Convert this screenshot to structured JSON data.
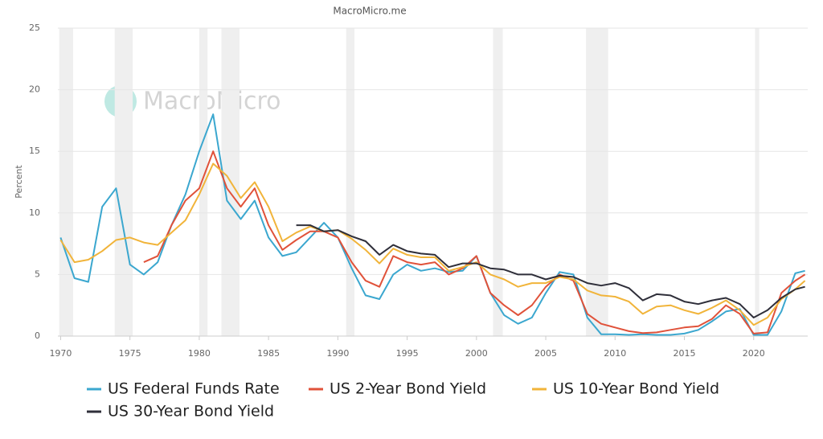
{
  "source": "MacroMicro.me",
  "watermark": "MacroMicro",
  "chart_data": {
    "type": "line",
    "ylabel": "Percent",
    "x": [
      1970,
      1971,
      1972,
      1973,
      1974,
      1975,
      1976,
      1977,
      1978,
      1979,
      1980,
      1981,
      1982,
      1983,
      1984,
      1985,
      1986,
      1987,
      1988,
      1989,
      1990,
      1991,
      1992,
      1993,
      1994,
      1995,
      1996,
      1997,
      1998,
      1999,
      2000,
      2001,
      2002,
      2003,
      2004,
      2005,
      2006,
      2007,
      2008,
      2009,
      2010,
      2011,
      2012,
      2013,
      2014,
      2015,
      2016,
      2017,
      2018,
      2019,
      2020,
      2021,
      2022,
      2023,
      2023.7
    ],
    "series": [
      {
        "name": "US Federal Funds Rate",
        "color": "#3ba7cf",
        "values": [
          8.0,
          4.7,
          4.4,
          10.5,
          12.0,
          5.8,
          5.0,
          6.0,
          9.0,
          11.5,
          15.0,
          18.0,
          11.0,
          9.5,
          11.0,
          8.0,
          6.5,
          6.8,
          8.0,
          9.2,
          8.0,
          5.5,
          3.3,
          3.0,
          5.0,
          5.8,
          5.3,
          5.5,
          5.2,
          5.3,
          6.5,
          3.5,
          1.7,
          1.0,
          1.5,
          3.5,
          5.2,
          5.0,
          1.5,
          0.15,
          0.15,
          0.1,
          0.15,
          0.1,
          0.1,
          0.2,
          0.5,
          1.2,
          2.0,
          2.2,
          0.1,
          0.1,
          2.0,
          5.1,
          5.3
        ]
      },
      {
        "name": "US 2-Year Bond Yield",
        "color": "#e0523a",
        "values": [
          null,
          null,
          null,
          null,
          null,
          null,
          6.0,
          6.5,
          9.0,
          11.0,
          12.0,
          15.0,
          12.0,
          10.5,
          12.0,
          9.0,
          7.0,
          7.8,
          8.5,
          8.5,
          8.0,
          6.0,
          4.5,
          4.0,
          6.5,
          6.0,
          5.8,
          6.0,
          5.0,
          5.5,
          6.5,
          3.5,
          2.5,
          1.7,
          2.5,
          4.0,
          5.0,
          4.5,
          1.8,
          1.0,
          0.7,
          0.4,
          0.25,
          0.3,
          0.5,
          0.7,
          0.8,
          1.4,
          2.5,
          1.8,
          0.2,
          0.3,
          3.5,
          4.5,
          5.0
        ]
      },
      {
        "name": "US 10-Year Bond Yield",
        "color": "#f1b43a",
        "values": [
          7.8,
          6.0,
          6.2,
          6.9,
          7.8,
          8.0,
          7.6,
          7.4,
          8.4,
          9.4,
          11.5,
          14.0,
          13.0,
          11.2,
          12.5,
          10.5,
          7.7,
          8.4,
          8.9,
          8.5,
          8.6,
          7.9,
          7.0,
          5.9,
          7.1,
          6.6,
          6.4,
          6.4,
          5.3,
          5.6,
          6.0,
          5.0,
          4.6,
          4.0,
          4.3,
          4.3,
          4.8,
          4.6,
          3.7,
          3.3,
          3.2,
          2.8,
          1.8,
          2.4,
          2.5,
          2.1,
          1.8,
          2.3,
          2.9,
          2.1,
          0.9,
          1.5,
          3.0,
          3.8,
          4.5
        ]
      },
      {
        "name": "US 30-Year Bond Yield",
        "color": "#2f2f3a",
        "values": [
          null,
          null,
          null,
          null,
          null,
          null,
          null,
          null,
          null,
          null,
          null,
          null,
          null,
          null,
          null,
          null,
          null,
          9.0,
          9.0,
          8.5,
          8.6,
          8.1,
          7.7,
          6.6,
          7.4,
          6.9,
          6.7,
          6.6,
          5.6,
          5.9,
          5.9,
          5.5,
          5.4,
          5.0,
          5.0,
          4.6,
          4.9,
          4.8,
          4.3,
          4.1,
          4.3,
          3.9,
          2.9,
          3.4,
          3.3,
          2.8,
          2.6,
          2.9,
          3.1,
          2.6,
          1.5,
          2.1,
          3.1,
          3.8,
          4.0
        ]
      }
    ],
    "recessions": [
      [
        1969.9,
        1970.9
      ],
      [
        1973.9,
        1975.2
      ],
      [
        1980.0,
        1980.6
      ],
      [
        1981.6,
        1982.9
      ],
      [
        1990.6,
        1991.2
      ],
      [
        2001.2,
        2001.9
      ],
      [
        2007.9,
        2009.5
      ],
      [
        2020.1,
        2020.4
      ]
    ],
    "xlim": [
      1969.8,
      2023.9
    ],
    "ylim": [
      0,
      25
    ],
    "xticks": [
      1970,
      1975,
      1980,
      1985,
      1990,
      1995,
      2000,
      2005,
      2010,
      2015,
      2020
    ],
    "yticks": [
      0,
      5,
      10,
      15,
      20,
      25
    ],
    "grid": true
  }
}
